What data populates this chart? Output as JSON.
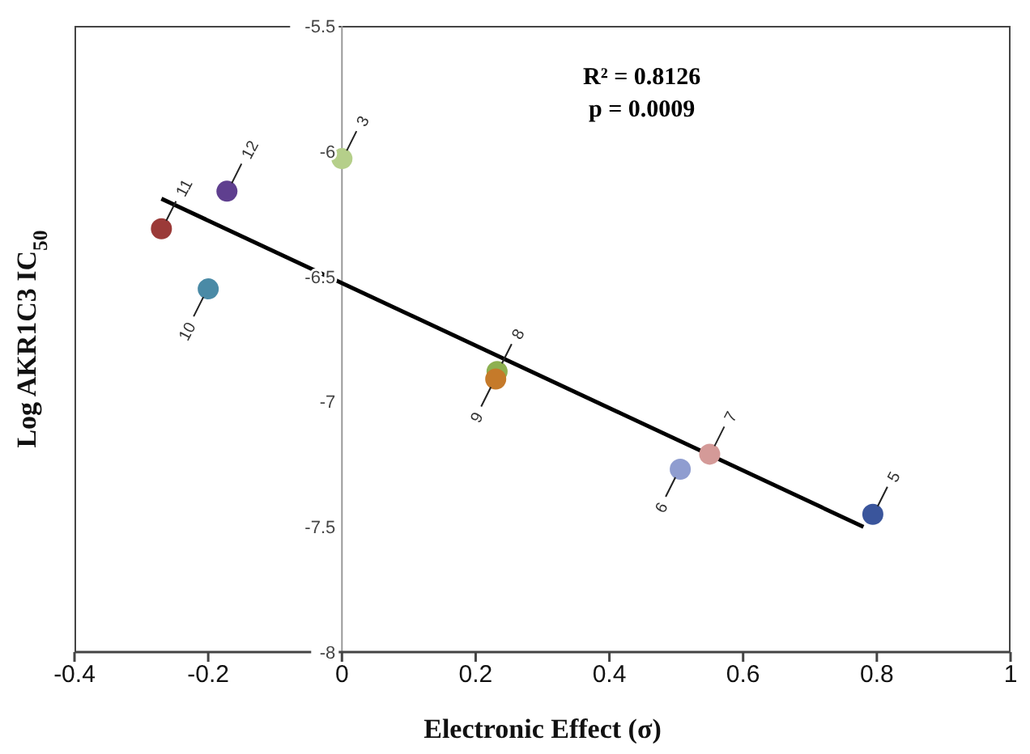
{
  "chart_data": {
    "type": "scatter",
    "xlabel": "Electronic Effect (σ)",
    "ylabel": "Log AKR1C3 IC$_{50}$",
    "xlim": [
      -0.4,
      1
    ],
    "xticks": [
      -0.4,
      -0.2,
      0,
      0.2,
      0.4,
      0.6,
      0.8,
      1
    ],
    "ylim": [
      -8,
      -5.5
    ],
    "yticks": [
      -8,
      -7.5,
      -7,
      -6.5,
      -6,
      -5.5
    ],
    "grid": false,
    "legend": false,
    "marker": "circle",
    "series": [
      {
        "type": "scatter",
        "x": [
          0,
          0.794,
          0.506,
          0.55,
          0.232,
          0.23,
          -0.2,
          -0.27,
          -0.172
        ],
        "values": [
          -6.03,
          -7.45,
          -7.27,
          -7.21,
          -6.88,
          -6.91,
          -6.55,
          -6.31,
          -6.16
        ],
        "colors": [
          "#b5cf8a",
          "#3a559c",
          "#8f9dd0",
          "#d49a98",
          "#8db050",
          "#c57a2a",
          "#4a8aa6",
          "#9b3a38",
          "#5f3f8f"
        ]
      },
      {
        "type": "line",
        "x": [
          -0.27,
          0.78
        ],
        "values": [
          -6.19,
          -7.5
        ],
        "color": "#000000",
        "line_style": "solid",
        "marker": "none"
      }
    ],
    "annotations": [
      "R² = 0.8126",
      "p = 0.0009",
      {
        "text": "3",
        "x": 0,
        "y": -6.03
      },
      {
        "text": "5",
        "x": 0.794,
        "y": -7.45
      },
      {
        "text": "6",
        "x": 0.506,
        "y": -7.27
      },
      {
        "text": "7",
        "x": 0.55,
        "y": -7.21
      },
      {
        "text": "9",
        "x": 0.23,
        "y": -6.91
      },
      {
        "text": "8",
        "x": 0.232,
        "y": -6.88
      },
      {
        "text": "10",
        "x": -0.2,
        "y": -6.55
      },
      {
        "text": "11",
        "x": -0.27,
        "y": -6.31
      },
      {
        "text": "12",
        "x": -0.172,
        "y": -6.16
      }
    ]
  }
}
